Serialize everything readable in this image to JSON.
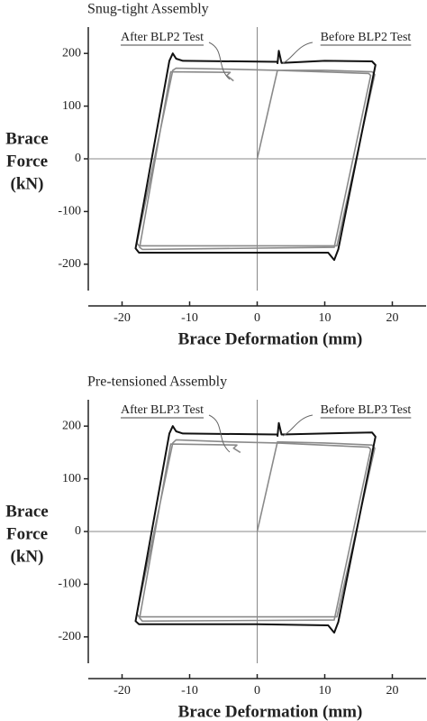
{
  "chart_data": [
    {
      "type": "line",
      "title": "Snug-tight Assembly",
      "x_label": "Brace Deformation (mm)",
      "y_label": [
        "Brace",
        "Force",
        "(kN)"
      ],
      "xlim": [
        -25,
        25
      ],
      "ylim": [
        -250,
        250
      ],
      "xticks": [
        -20,
        -10,
        0,
        10,
        20
      ],
      "yticks": [
        -200,
        -100,
        0,
        100,
        200
      ],
      "series": [
        {
          "name": "After BLP2 Test",
          "color": "#8a8a8a",
          "x": [
            0,
            3,
            10,
            17,
            17.4,
            11.8,
            0,
            -17.5,
            -17.8,
            -12.5,
            -12,
            -4,
            3,
            16.5,
            16.8,
            11.4,
            -17,
            -17.4,
            -12.8,
            -4,
            -4.5,
            -3.5
          ],
          "y": [
            0,
            168,
            168,
            165,
            160,
            -165,
            -165,
            -165,
            -160,
            168,
            172,
            170,
            168,
            162,
            158,
            -168,
            -172,
            -168,
            165,
            164,
            158,
            148
          ]
        },
        {
          "name": "Before BLP2 Test",
          "color": "#111111",
          "x": [
            3,
            3.2,
            3.6,
            10,
            17,
            17.5,
            12,
            11.4,
            10.5,
            0,
            -17.5,
            -18,
            -13,
            -12.5,
            -12,
            -11,
            3
          ],
          "y": [
            180,
            205,
            182,
            186,
            185,
            178,
            -172,
            -192,
            -178,
            -178,
            -178,
            -170,
            186,
            200,
            190,
            186,
            184
          ]
        }
      ]
    },
    {
      "type": "line",
      "title": "Pre-tensioned Assembly",
      "x_label": "Brace Deformation (mm)",
      "y_label": [
        "Brace",
        "Force",
        "(kN)"
      ],
      "xlim": [
        -25,
        25
      ],
      "ylim": [
        -250,
        250
      ],
      "xticks": [
        -20,
        -10,
        0,
        10,
        20
      ],
      "yticks": [
        -200,
        -100,
        0,
        100,
        200
      ],
      "series": [
        {
          "name": "After BLP3 Test",
          "color": "#8a8a8a",
          "x": [
            0,
            3,
            10,
            17,
            17.4,
            11.8,
            0,
            -17.5,
            -17.8,
            -12.5,
            -12,
            -4,
            3,
            16.5,
            16.8,
            11.4,
            -17,
            -17.4,
            -12.8,
            -3,
            -3.5,
            -2.5
          ],
          "y": [
            0,
            170,
            168,
            164,
            158,
            -162,
            -162,
            -162,
            -156,
            168,
            174,
            170,
            168,
            160,
            156,
            -168,
            -170,
            -164,
            166,
            164,
            158,
            150
          ]
        },
        {
          "name": "Before BLP3 Test",
          "color": "#111111",
          "x": [
            3,
            3.2,
            3.6,
            10,
            17,
            17.5,
            12,
            11.4,
            10.5,
            0,
            -17.5,
            -18,
            -13,
            -12.5,
            -12,
            -11,
            3
          ],
          "y": [
            180,
            206,
            184,
            186,
            188,
            180,
            -172,
            -192,
            -178,
            -176,
            -176,
            -170,
            186,
            200,
            190,
            186,
            184
          ]
        }
      ]
    }
  ]
}
